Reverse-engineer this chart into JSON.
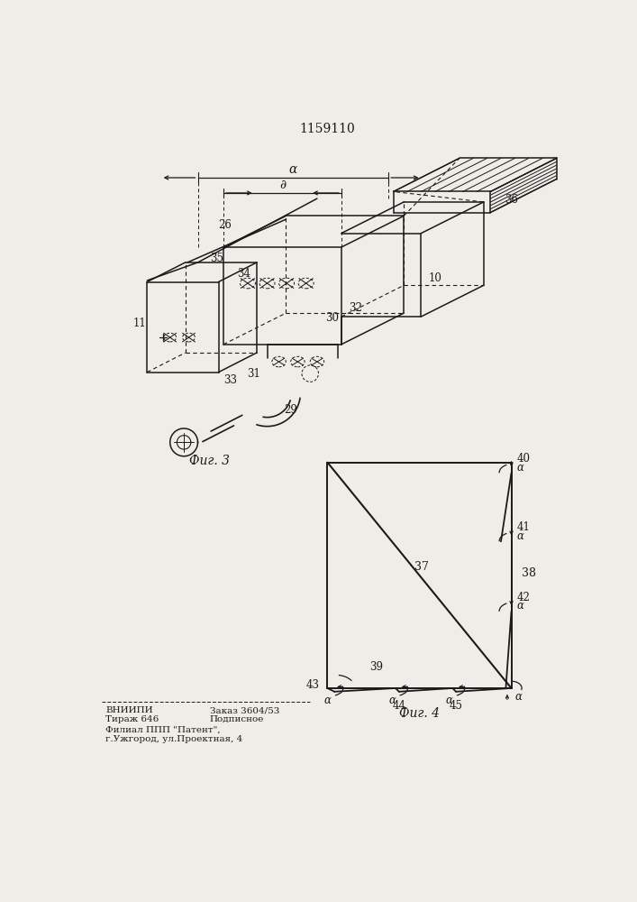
{
  "title": "1159110",
  "bg_color": "#f0ede8",
  "line_color": "#1a1a1a",
  "fig3_label": "Фиг. 3",
  "fig4_label": "Фиг. 4",
  "footer_col1_line1": "ВНИИПИ",
  "footer_col2_line1": "Заказ 3604/53",
  "footer_col1_line2": "Тираж 646",
  "footer_col2_line2": "Подписное",
  "footer_line3": "Филиал ППП \"Патент\",",
  "footer_line4": "г.Ужгород, ул.Проектная, 4"
}
